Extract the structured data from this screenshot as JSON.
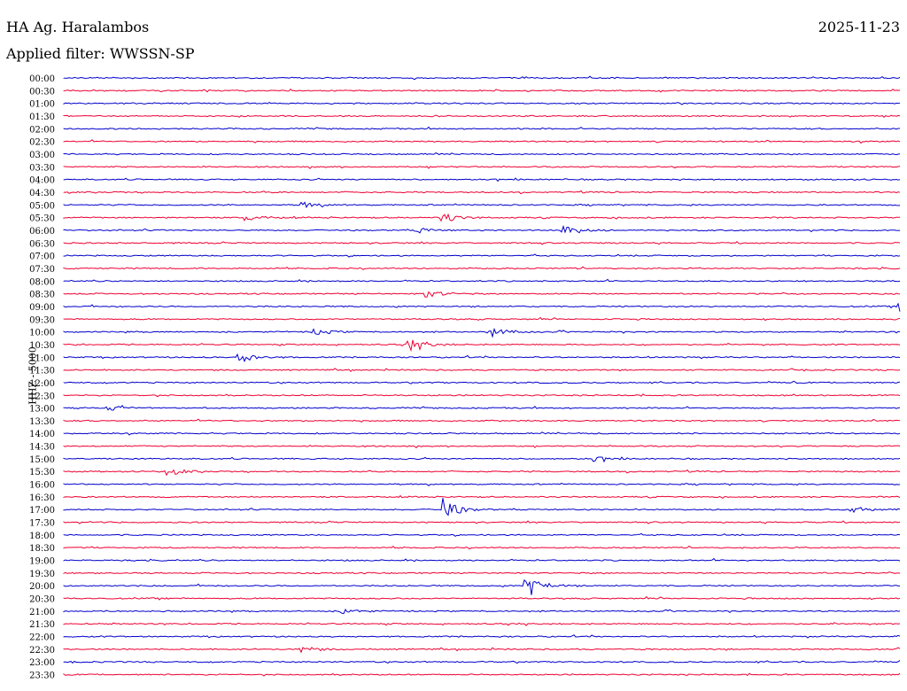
{
  "header": {
    "station": "HA Ag. Haralambos",
    "date": "2025-11-23",
    "filter": "Applied filter: WWSSN-SP"
  },
  "chart_data": {
    "type": "line",
    "title": "HA Ag. Haralambos",
    "ylabel": "HHZ - 5000",
    "rows": [
      "00:00",
      "00:30",
      "01:00",
      "01:30",
      "02:00",
      "02:30",
      "03:00",
      "03:30",
      "04:00",
      "04:30",
      "05:00",
      "05:30",
      "06:00",
      "06:30",
      "07:00",
      "07:30",
      "08:00",
      "08:30",
      "09:00",
      "09:30",
      "10:00",
      "10:30",
      "11:00",
      "11:30",
      "12:00",
      "12:30",
      "13:00",
      "13:30",
      "14:00",
      "14:30",
      "15:00",
      "15:30",
      "16:00",
      "16:30",
      "17:00",
      "17:30",
      "18:00",
      "18:30",
      "19:00",
      "19:30",
      "20:00",
      "20:30",
      "21:00",
      "21:30",
      "22:00",
      "22:30",
      "23:00",
      "23:30"
    ],
    "colors": [
      "#0000cc",
      "#ee0033"
    ],
    "events": [
      {
        "row": "05:00",
        "minute": 8.5,
        "amp": 4
      },
      {
        "row": "05:30",
        "minute": 6.5,
        "amp": 4
      },
      {
        "row": "05:30",
        "minute": 13.6,
        "amp": 6
      },
      {
        "row": "06:00",
        "minute": 17.9,
        "amp": 8
      },
      {
        "row": "06:00",
        "minute": 12.7,
        "amp": 3
      },
      {
        "row": "08:30",
        "minute": 13.0,
        "amp": 5
      },
      {
        "row": "09:00",
        "minute": 30.0,
        "amp": 5
      },
      {
        "row": "10:00",
        "minute": 15.3,
        "amp": 6
      },
      {
        "row": "10:00",
        "minute": 9.0,
        "amp": 4
      },
      {
        "row": "10:30",
        "minute": 12.4,
        "amp": 9
      },
      {
        "row": "11:00",
        "minute": 6.3,
        "amp": 7
      },
      {
        "row": "13:00",
        "minute": 1.6,
        "amp": 3
      },
      {
        "row": "15:00",
        "minute": 19.0,
        "amp": 3
      },
      {
        "row": "15:30",
        "minute": 3.7,
        "amp": 5
      },
      {
        "row": "17:00",
        "minute": 13.6,
        "amp": 13
      },
      {
        "row": "17:00",
        "minute": 28.3,
        "amp": 4
      },
      {
        "row": "20:00",
        "minute": 16.6,
        "amp": 15
      },
      {
        "row": "21:00",
        "minute": 10.0,
        "amp": 3
      },
      {
        "row": "22:30",
        "minute": 8.5,
        "amp": 4
      }
    ]
  }
}
